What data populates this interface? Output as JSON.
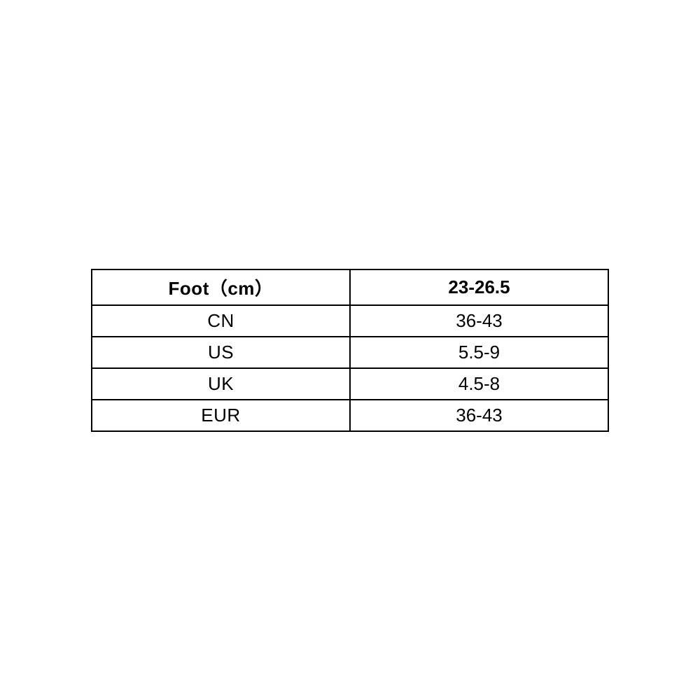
{
  "size_table": {
    "type": "table",
    "background_color": "#ffffff",
    "border_color": "#000000",
    "border_width": 2,
    "text_color": "#000000",
    "font_size": 26,
    "header_font_weight": "bold",
    "body_font_weight": "normal",
    "columns": [
      "label",
      "value"
    ],
    "column_widths": [
      "50%",
      "50%"
    ],
    "alignment": "center",
    "rows": [
      {
        "label": "Foot（cm）",
        "value": "23-26.5",
        "is_header": true
      },
      {
        "label": "CN",
        "value": "36-43",
        "is_header": false
      },
      {
        "label": "US",
        "value": "5.5-9",
        "is_header": false
      },
      {
        "label": "UK",
        "value": "4.5-8",
        "is_header": false
      },
      {
        "label": "EUR",
        "value": "36-43",
        "is_header": false
      }
    ]
  }
}
